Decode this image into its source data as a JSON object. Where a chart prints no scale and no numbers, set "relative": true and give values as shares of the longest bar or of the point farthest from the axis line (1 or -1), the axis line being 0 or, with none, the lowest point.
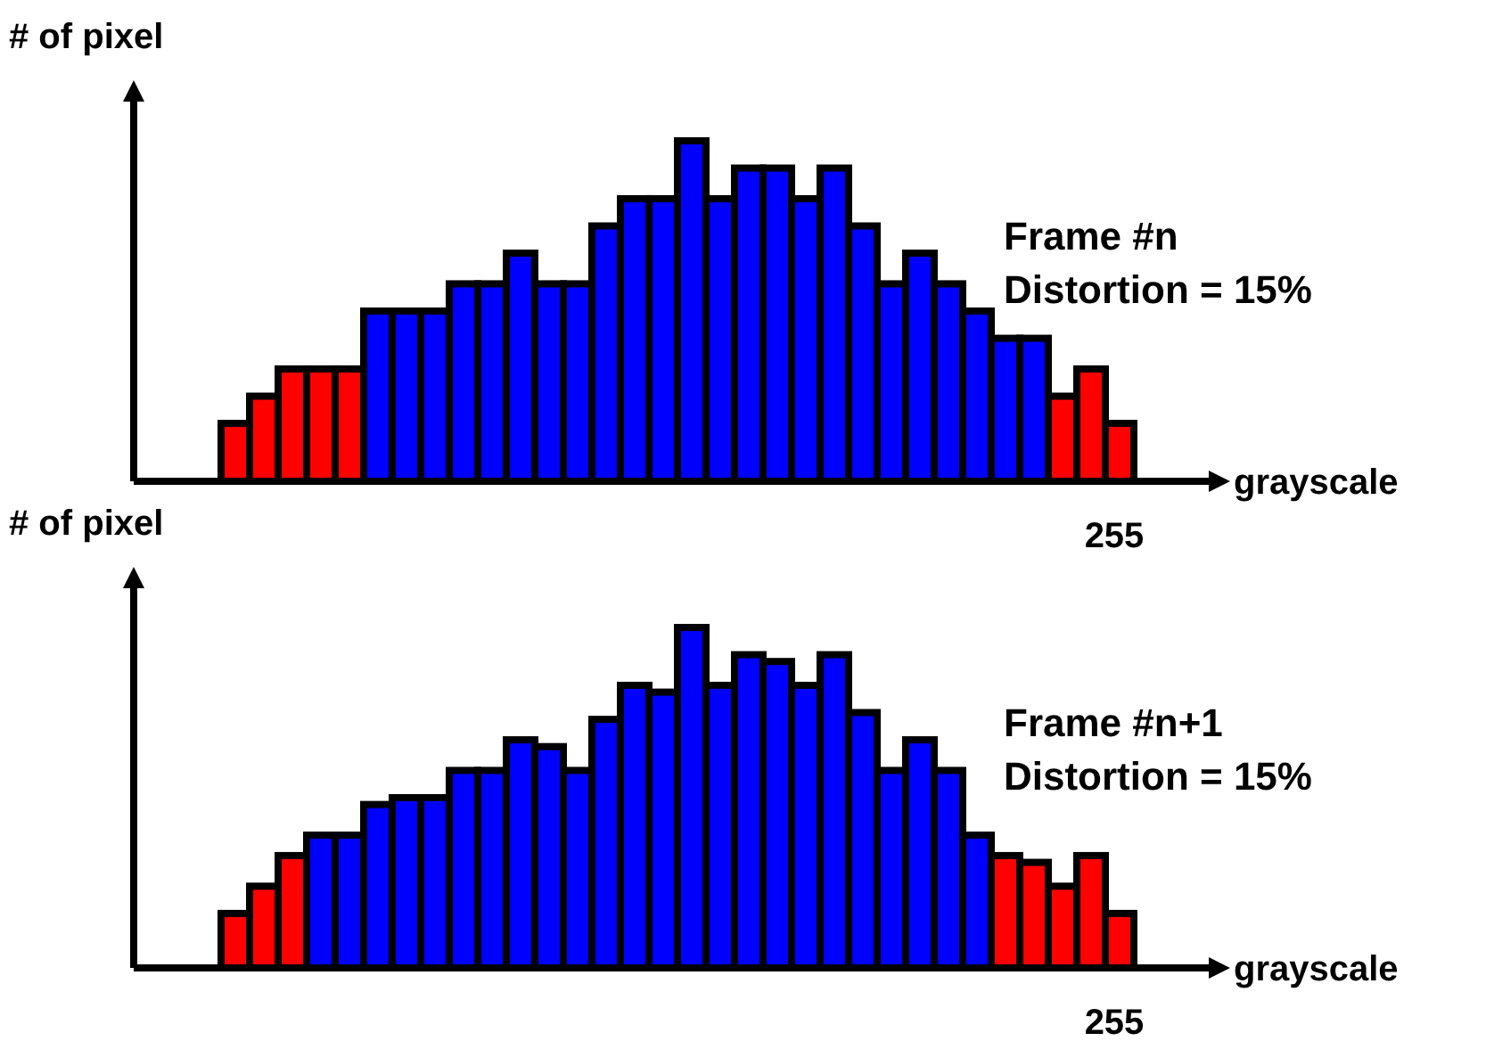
{
  "chart_data": [
    {
      "type": "bar",
      "relative": true,
      "title": "Frame #n",
      "subtitle": "Distortion = 15%",
      "xlabel": "grayscale",
      "ylabel": "# of pixel",
      "annotations": [
        "255"
      ],
      "categories": [
        null,
        null,
        null,
        null,
        null,
        null,
        null,
        null,
        null,
        null,
        null,
        null,
        null,
        null,
        null,
        null,
        null,
        null,
        null,
        null,
        null,
        null,
        null,
        null,
        null,
        null,
        null,
        null,
        null,
        null,
        null,
        null
      ],
      "values": [
        0.17,
        0.25,
        0.33,
        0.33,
        0.33,
        0.5,
        0.5,
        0.5,
        0.58,
        0.58,
        0.67,
        0.58,
        0.58,
        0.75,
        0.83,
        0.83,
        1,
        0.83,
        0.92,
        0.92,
        0.83,
        0.92,
        0.75,
        0.58,
        0.67,
        0.58,
        0.5,
        0.42,
        0.42,
        0.25,
        0.33,
        0.17
      ],
      "colors": [
        "#ff0000",
        "#ff0000",
        "#ff0000",
        "#ff0000",
        "#ff0000",
        "#0000ff",
        "#0000ff",
        "#0000ff",
        "#0000ff",
        "#0000ff",
        "#0000ff",
        "#0000ff",
        "#0000ff",
        "#0000ff",
        "#0000ff",
        "#0000ff",
        "#0000ff",
        "#0000ff",
        "#0000ff",
        "#0000ff",
        "#0000ff",
        "#0000ff",
        "#0000ff",
        "#0000ff",
        "#0000ff",
        "#0000ff",
        "#0000ff",
        "#0000ff",
        "#0000ff",
        "#ff0000",
        "#ff0000",
        "#ff0000"
      ]
    },
    {
      "type": "bar",
      "relative": true,
      "title": "Frame #n+1",
      "subtitle": "Distortion = 15%",
      "xlabel": "grayscale",
      "ylabel": "# of pixel",
      "annotations": [
        "255"
      ],
      "categories": [
        null,
        null,
        null,
        null,
        null,
        null,
        null,
        null,
        null,
        null,
        null,
        null,
        null,
        null,
        null,
        null,
        null,
        null,
        null,
        null,
        null,
        null,
        null,
        null,
        null,
        null,
        null,
        null,
        null,
        null,
        null,
        null
      ],
      "values": [
        0.16,
        0.24,
        0.33,
        0.39,
        0.39,
        0.48,
        0.5,
        0.5,
        0.58,
        0.58,
        0.67,
        0.65,
        0.58,
        0.73,
        0.83,
        0.81,
        1,
        0.83,
        0.92,
        0.9,
        0.83,
        0.92,
        0.75,
        0.58,
        0.67,
        0.58,
        0.39,
        0.33,
        0.31,
        0.24,
        0.33,
        0.16
      ],
      "colors": [
        "#ff0000",
        "#ff0000",
        "#ff0000",
        "#0000ff",
        "#0000ff",
        "#0000ff",
        "#0000ff",
        "#0000ff",
        "#0000ff",
        "#0000ff",
        "#0000ff",
        "#0000ff",
        "#0000ff",
        "#0000ff",
        "#0000ff",
        "#0000ff",
        "#0000ff",
        "#0000ff",
        "#0000ff",
        "#0000ff",
        "#0000ff",
        "#0000ff",
        "#0000ff",
        "#0000ff",
        "#0000ff",
        "#0000ff",
        "#0000ff",
        "#ff0000",
        "#ff0000",
        "#ff0000",
        "#ff0000",
        "#ff0000"
      ]
    }
  ]
}
